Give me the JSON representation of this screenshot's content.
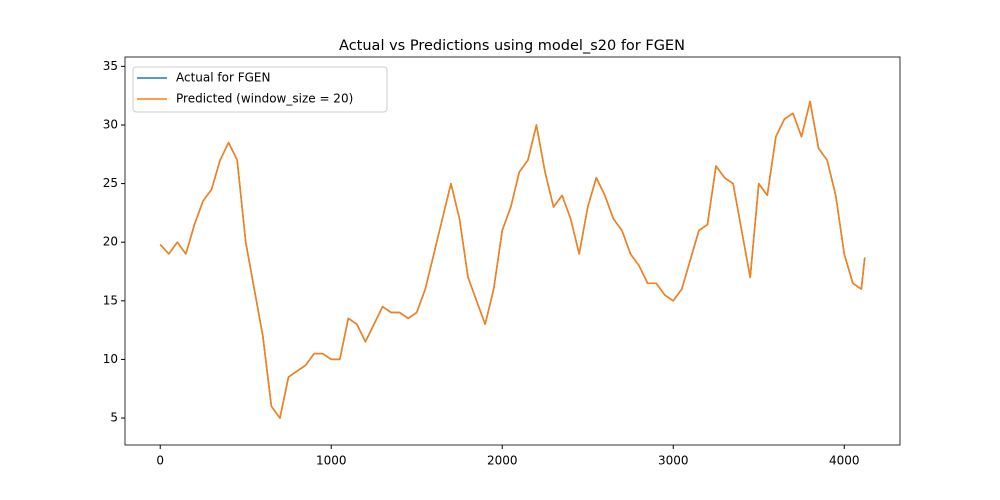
{
  "chart_data": {
    "type": "line",
    "title": "Actual vs Predictions using model_s20 for FGEN",
    "x": [
      0,
      50,
      100,
      150,
      200,
      250,
      300,
      350,
      400,
      450,
      500,
      550,
      600,
      650,
      700,
      750,
      800,
      850,
      900,
      950,
      1000,
      1050,
      1100,
      1150,
      1200,
      1250,
      1300,
      1350,
      1400,
      1450,
      1500,
      1550,
      1600,
      1650,
      1700,
      1750,
      1800,
      1850,
      1900,
      1950,
      2000,
      2050,
      2100,
      2150,
      2200,
      2250,
      2300,
      2350,
      2400,
      2450,
      2500,
      2550,
      2600,
      2650,
      2700,
      2750,
      2800,
      2850,
      2900,
      2950,
      3000,
      3050,
      3100,
      3150,
      3200,
      3250,
      3300,
      3350,
      3400,
      3450,
      3500,
      3550,
      3600,
      3650,
      3700,
      3750,
      3800,
      3850,
      3900,
      3950,
      4000,
      4050,
      4100,
      4120
    ],
    "series": [
      {
        "name": "Actual for FGEN",
        "color": "#1f77b4",
        "values": [
          19.8,
          19,
          20,
          19,
          21.5,
          23.5,
          24.5,
          27,
          28.5,
          27,
          20,
          16,
          12,
          6,
          5,
          8.5,
          9,
          9.5,
          10.5,
          10.5,
          10,
          10,
          13.5,
          13,
          11.5,
          13,
          14.5,
          14,
          14,
          13.5,
          14,
          16,
          19,
          22,
          25,
          22,
          17,
          15,
          13,
          16,
          21,
          23,
          26,
          27,
          30,
          26,
          23,
          24,
          22,
          19,
          23,
          25.5,
          24,
          22,
          21,
          19,
          18,
          16.5,
          16.5,
          15.5,
          15,
          16,
          18.5,
          21,
          21.5,
          26.5,
          25.5,
          25,
          21,
          17,
          25,
          24,
          29,
          30.5,
          31,
          29,
          32,
          28,
          27,
          24,
          19,
          16.5,
          16,
          18.7
        ]
      },
      {
        "name": "Predicted (window_size = 20)",
        "color": "#ff7f0e",
        "values": [
          19.8,
          19,
          20,
          19,
          21.5,
          23.5,
          24.5,
          27,
          28.5,
          27,
          20,
          16,
          12,
          6,
          5,
          8.5,
          9,
          9.5,
          10.5,
          10.5,
          10,
          10,
          13.5,
          13,
          11.5,
          13,
          14.5,
          14,
          14,
          13.5,
          14,
          16,
          19,
          22,
          25,
          22,
          17,
          15,
          13,
          16,
          21,
          23,
          26,
          27,
          30,
          26,
          23,
          24,
          22,
          19,
          23,
          25.5,
          24,
          22,
          21,
          19,
          18,
          16.5,
          16.5,
          15.5,
          15,
          16,
          18.5,
          21,
          21.5,
          26.5,
          25.5,
          25,
          21,
          17,
          25,
          24,
          29,
          30.5,
          31,
          29,
          32,
          28,
          27,
          24,
          19,
          16.5,
          16,
          18.7
        ]
      }
    ],
    "xlim": [
      -206,
      4326
    ],
    "ylim": [
      2.7,
      35.8
    ],
    "xticks": [
      0,
      1000,
      2000,
      3000,
      4000
    ],
    "yticks": [
      5,
      10,
      15,
      20,
      25,
      30,
      35
    ],
    "legend": "upper left"
  }
}
